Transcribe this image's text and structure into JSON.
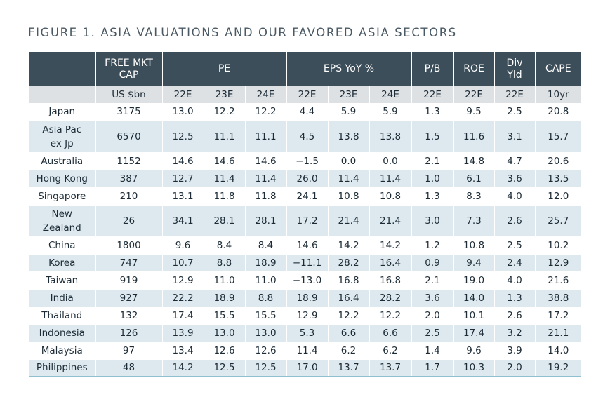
{
  "title": "FIGURE 1. ASIA VALUATIONS AND OUR FAVORED ASIA SECTORS",
  "header": {
    "free_mkt_cap": "FREE MKT CAP",
    "pe": "PE",
    "eps": "EPS YoY %",
    "pb": "P/B",
    "roe": "ROE",
    "div": "Div Yld",
    "cape": "CAPE"
  },
  "subheader": [
    "US $bn",
    "22E",
    "23E",
    "24E",
    "22E",
    "23E",
    "24E",
    "22E",
    "22E",
    "22E",
    "10yr"
  ],
  "rows": [
    {
      "name": "Japan",
      "cells": [
        "3175",
        "13.0",
        "12.2",
        "12.2",
        "4.4",
        "5.9",
        "5.9",
        "1.3",
        "9.5",
        "2.5",
        "20.8"
      ]
    },
    {
      "name": "Asia Pac ex Jp",
      "cells": [
        "6570",
        "12.5",
        "11.1",
        "11.1",
        "4.5",
        "13.8",
        "13.8",
        "1.5",
        "11.6",
        "3.1",
        "15.7"
      ]
    },
    {
      "name": "Australia",
      "cells": [
        "1152",
        "14.6",
        "14.6",
        "14.6",
        "−1.5",
        "0.0",
        "0.0",
        "2.1",
        "14.8",
        "4.7",
        "20.6"
      ]
    },
    {
      "name": "Hong Kong",
      "cells": [
        "387",
        "12.7",
        "11.4",
        "11.4",
        "26.0",
        "11.4",
        "11.4",
        "1.0",
        "6.1",
        "3.6",
        "13.5"
      ]
    },
    {
      "name": "Singapore",
      "cells": [
        "210",
        "13.1",
        "11.8",
        "11.8",
        "24.1",
        "10.8",
        "10.8",
        "1.3",
        "8.3",
        "4.0",
        "12.0"
      ]
    },
    {
      "name": "New Zealand",
      "cells": [
        "26",
        "34.1",
        "28.1",
        "28.1",
        "17.2",
        "21.4",
        "21.4",
        "3.0",
        "7.3",
        "2.6",
        "25.7"
      ]
    },
    {
      "name": "China",
      "cells": [
        "1800",
        "9.6",
        "8.4",
        "8.4",
        "14.6",
        "14.2",
        "14.2",
        "1.2",
        "10.8",
        "2.5",
        "10.2"
      ]
    },
    {
      "name": "Korea",
      "cells": [
        "747",
        "10.7",
        "8.8",
        "18.9",
        "−11.1",
        "28.2",
        "16.4",
        "0.9",
        "9.4",
        "2.4",
        "12.9"
      ]
    },
    {
      "name": "Taiwan",
      "cells": [
        "919",
        "12.9",
        "11.0",
        "11.0",
        "−13.0",
        "16.8",
        "16.8",
        "2.1",
        "19.0",
        "4.0",
        "21.6"
      ]
    },
    {
      "name": "India",
      "cells": [
        "927",
        "22.2",
        "18.9",
        "8.8",
        "18.9",
        "16.4",
        "28.2",
        "3.6",
        "14.0",
        "1.3",
        "38.8"
      ]
    },
    {
      "name": "Thailand",
      "cells": [
        "132",
        "17.4",
        "15.5",
        "15.5",
        "12.9",
        "12.2",
        "12.2",
        "2.0",
        "10.1",
        "2.6",
        "17.2"
      ]
    },
    {
      "name": "Indonesia",
      "cells": [
        "126",
        "13.9",
        "13.0",
        "13.0",
        "5.3",
        "6.6",
        "6.6",
        "2.5",
        "17.4",
        "3.2",
        "21.1"
      ]
    },
    {
      "name": "Malaysia",
      "cells": [
        "97",
        "13.4",
        "12.6",
        "12.6",
        "11.4",
        "6.2",
        "6.2",
        "1.4",
        "9.6",
        "3.9",
        "14.0"
      ]
    },
    {
      "name": "Philippines",
      "cells": [
        "48",
        "14.2",
        "12.5",
        "12.5",
        "17.0",
        "13.7",
        "13.7",
        "1.7",
        "10.3",
        "2.0",
        "19.2"
      ]
    }
  ]
}
